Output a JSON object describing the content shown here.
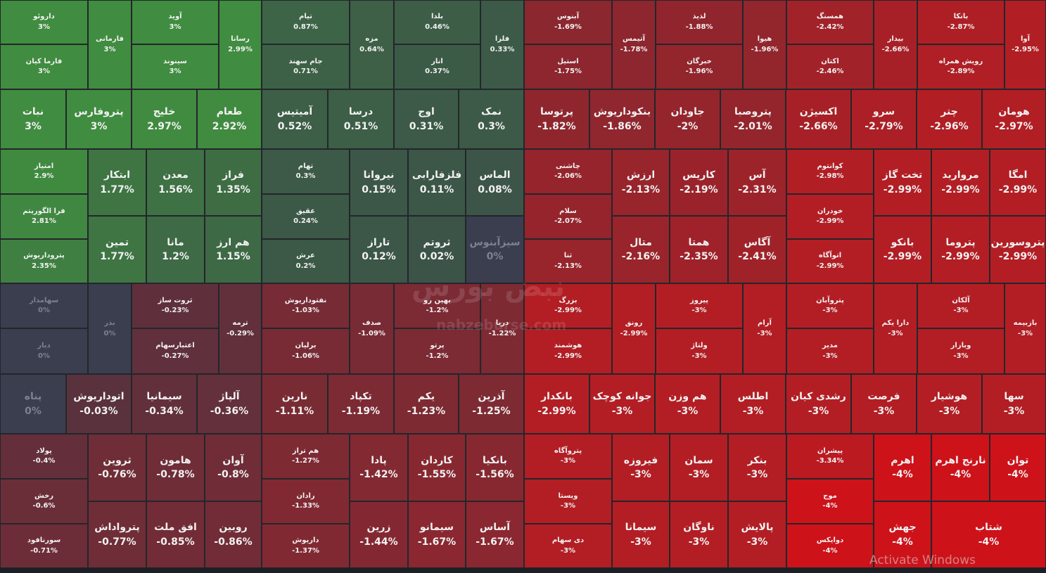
{
  "tiles": [
    {
      "name": "داروئو",
      "change": "3%"
    },
    {
      "name": "فارما کیان",
      "change": "3%"
    },
    {
      "name": "فارمانی",
      "change": "3%"
    },
    {
      "name": "آوید",
      "change": "3%"
    },
    {
      "name": "سینوند",
      "change": "3%"
    },
    {
      "name": "رسانا",
      "change": "2.99%"
    },
    {
      "name": "نبات",
      "change": "3%"
    },
    {
      "name": "پتروفارس",
      "change": "3%"
    },
    {
      "name": "خلیج",
      "change": "2.97%"
    },
    {
      "name": "طعام",
      "change": "2.92%"
    },
    {
      "name": "امتیاز",
      "change": "2.9%"
    },
    {
      "name": "فرا الگوریتم",
      "change": "2.81%"
    },
    {
      "name": "پتروداریوش",
      "change": "2.35%"
    },
    {
      "name": "ابتکار",
      "change": "1.77%"
    },
    {
      "name": "معدن",
      "change": "1.56%"
    },
    {
      "name": "فراز",
      "change": "1.35%"
    },
    {
      "name": "تمین",
      "change": "1.77%"
    },
    {
      "name": "مانا",
      "change": "1.2%"
    },
    {
      "name": "هم ارز",
      "change": "1.15%"
    },
    {
      "name": "تیام",
      "change": "0.87%"
    },
    {
      "name": "جام سهند",
      "change": "0.71%"
    },
    {
      "name": "مزه",
      "change": "0.64%"
    },
    {
      "name": "بلدا",
      "change": "0.46%"
    },
    {
      "name": "انار",
      "change": "0.37%"
    },
    {
      "name": "فلزا",
      "change": "0.33%"
    },
    {
      "name": "آمیتیس",
      "change": "0.52%"
    },
    {
      "name": "درسا",
      "change": "0.51%"
    },
    {
      "name": "اوج",
      "change": "0.31%"
    },
    {
      "name": "نمک",
      "change": "0.3%"
    },
    {
      "name": "تهام",
      "change": "0.3%"
    },
    {
      "name": "عقیق",
      "change": "0.24%"
    },
    {
      "name": "عرش",
      "change": "0.2%"
    },
    {
      "name": "نیروانا",
      "change": "0.15%"
    },
    {
      "name": "فلزفارابی",
      "change": "0.11%"
    },
    {
      "name": "الماس",
      "change": "0.08%"
    },
    {
      "name": "تاراز",
      "change": "0.12%"
    },
    {
      "name": "ثروتم",
      "change": "0.02%"
    },
    {
      "name": "سیزآبنوس",
      "change": "0%"
    },
    {
      "name": "سهامدار",
      "change": "0%"
    },
    {
      "name": "دیار",
      "change": "0%"
    },
    {
      "name": "بذر",
      "change": "0%"
    },
    {
      "name": "ثروت ساز",
      "change": "-0.23%"
    },
    {
      "name": "اعتبارسهام",
      "change": "-0.27%"
    },
    {
      "name": "ترمه",
      "change": "-0.29%"
    },
    {
      "name": "نفتوداریوش",
      "change": "-1.03%"
    },
    {
      "name": "برلیان",
      "change": "-1.06%"
    },
    {
      "name": "صدف",
      "change": "-1.09%"
    },
    {
      "name": "بهین رو",
      "change": "-1.2%"
    },
    {
      "name": "پرتو",
      "change": "-1.2%"
    },
    {
      "name": "دریا",
      "change": "-1.22%"
    },
    {
      "name": "پناه",
      "change": "0%"
    },
    {
      "name": "اتوداریوش",
      "change": "-0.03%"
    },
    {
      "name": "سیمانیا",
      "change": "-0.34%"
    },
    {
      "name": "آلپاژ",
      "change": "-0.36%"
    },
    {
      "name": "نارین",
      "change": "-1.11%"
    },
    {
      "name": "تکپاد",
      "change": "-1.19%"
    },
    {
      "name": "یکم",
      "change": "-1.23%"
    },
    {
      "name": "آذرین",
      "change": "-1.25%"
    },
    {
      "name": "پولاد",
      "change": "-0.4%"
    },
    {
      "name": "رخش",
      "change": "-0.6%"
    },
    {
      "name": "سورنافود",
      "change": "-0.71%"
    },
    {
      "name": "ثروین",
      "change": "-0.76%"
    },
    {
      "name": "هامون",
      "change": "-0.78%"
    },
    {
      "name": "آوان",
      "change": "-0.8%"
    },
    {
      "name": "پترواداش",
      "change": "-0.77%"
    },
    {
      "name": "افق ملت",
      "change": "-0.85%"
    },
    {
      "name": "روبین",
      "change": "-0.86%"
    },
    {
      "name": "هم تراز",
      "change": "-1.27%"
    },
    {
      "name": "رادان",
      "change": "-1.33%"
    },
    {
      "name": "داریوش",
      "change": "-1.37%"
    },
    {
      "name": "پادا",
      "change": "-1.42%"
    },
    {
      "name": "کاردان",
      "change": "-1.55%"
    },
    {
      "name": "بانکیا",
      "change": "-1.56%"
    },
    {
      "name": "زرین",
      "change": "-1.44%"
    },
    {
      "name": "سیمانو",
      "change": "-1.67%"
    },
    {
      "name": "آساس",
      "change": "-1.67%"
    },
    {
      "name": "آبنوس",
      "change": "-1.69%"
    },
    {
      "name": "استیل",
      "change": "-1.75%"
    },
    {
      "name": "آتیمس",
      "change": "-1.78%"
    },
    {
      "name": "لذیذ",
      "change": "-1.88%"
    },
    {
      "name": "خبرگان",
      "change": "-1.96%"
    },
    {
      "name": "هیوا",
      "change": "-1.96%"
    },
    {
      "name": "همسنگ",
      "change": "-2.42%"
    },
    {
      "name": "اکتان",
      "change": "-2.46%"
    },
    {
      "name": "بیدار",
      "change": "-2.66%"
    },
    {
      "name": "بانکا",
      "change": "-2.87%"
    },
    {
      "name": "رویش همراه",
      "change": "-2.89%"
    },
    {
      "name": "آوا",
      "change": "-2.95%"
    },
    {
      "name": "پرتوسا",
      "change": "-1.82%"
    },
    {
      "name": "بنکوداریوش",
      "change": "-1.86%"
    },
    {
      "name": "جاودان",
      "change": "-2%"
    },
    {
      "name": "پتروصبا",
      "change": "-2.01%"
    },
    {
      "name": "اکسیژن",
      "change": "-2.66%"
    },
    {
      "name": "سرو",
      "change": "-2.79%"
    },
    {
      "name": "چتر",
      "change": "-2.96%"
    },
    {
      "name": "هومان",
      "change": "-2.97%"
    },
    {
      "name": "چاشنی",
      "change": "-2.06%"
    },
    {
      "name": "سلام",
      "change": "-2.07%"
    },
    {
      "name": "ثنا",
      "change": "-2.13%"
    },
    {
      "name": "ارزش",
      "change": "-2.13%"
    },
    {
      "name": "کاریس",
      "change": "-2.19%"
    },
    {
      "name": "آس",
      "change": "-2.31%"
    },
    {
      "name": "متال",
      "change": "-2.16%"
    },
    {
      "name": "همتا",
      "change": "-2.35%"
    },
    {
      "name": "آگاس",
      "change": "-2.41%"
    },
    {
      "name": "کوانتوم",
      "change": "-2.98%"
    },
    {
      "name": "خودران",
      "change": "-2.99%"
    },
    {
      "name": "اتوآگاه",
      "change": "-2.99%"
    },
    {
      "name": "تخت گاز",
      "change": "-2.99%"
    },
    {
      "name": "مرواربد",
      "change": "-2.99%"
    },
    {
      "name": "امگا",
      "change": "-2.99%"
    },
    {
      "name": "بانکو",
      "change": "-2.99%"
    },
    {
      "name": "پتروما",
      "change": "-2.99%"
    },
    {
      "name": "پتروسورین",
      "change": "-2.99%"
    },
    {
      "name": "بزرگ",
      "change": "-2.99%"
    },
    {
      "name": "هوشمند",
      "change": "-2.99%"
    },
    {
      "name": "رونق",
      "change": "-2.99%"
    },
    {
      "name": "پیروز",
      "change": "-3%"
    },
    {
      "name": "ولتاژ",
      "change": "-3%"
    },
    {
      "name": "آرام",
      "change": "-3%"
    },
    {
      "name": "پتروآبان",
      "change": "-3%"
    },
    {
      "name": "مدیر",
      "change": "-3%"
    },
    {
      "name": "دارا یکم",
      "change": "-3%"
    },
    {
      "name": "آلکان",
      "change": "-3%"
    },
    {
      "name": "وبازار",
      "change": "-3%"
    },
    {
      "name": "بازبیمه",
      "change": "-3%"
    },
    {
      "name": "بانکدار",
      "change": "-2.99%"
    },
    {
      "name": "جوانه کوچک",
      "change": "-3%"
    },
    {
      "name": "هم وزن",
      "change": "-3%"
    },
    {
      "name": "اطلس",
      "change": "-3%"
    },
    {
      "name": "رشدی کیان",
      "change": "-3%"
    },
    {
      "name": "فرصت",
      "change": "-3%"
    },
    {
      "name": "هوشیار",
      "change": "-3%"
    },
    {
      "name": "سها",
      "change": "-3%"
    },
    {
      "name": "پتروآگاه",
      "change": "-3%"
    },
    {
      "name": "ویستا",
      "change": "-3%"
    },
    {
      "name": "دی سهام",
      "change": "-3%"
    },
    {
      "name": "فیروزه",
      "change": "-3%"
    },
    {
      "name": "سمان",
      "change": "-3%"
    },
    {
      "name": "بنکر",
      "change": "-3%"
    },
    {
      "name": "سیمانا",
      "change": "-3%"
    },
    {
      "name": "ناوگان",
      "change": "-3%"
    },
    {
      "name": "پالایش",
      "change": "-3%"
    },
    {
      "name": "پیشران",
      "change": "-3.34%"
    },
    {
      "name": "موج",
      "change": "-4%"
    },
    {
      "name": "دوایکس",
      "change": "-4%"
    },
    {
      "name": "اهرم",
      "change": "-4%"
    },
    {
      "name": "نارنج اهرم",
      "change": "-4%"
    },
    {
      "name": "توان",
      "change": "-4%"
    },
    {
      "name": "جهش",
      "change": "-4%"
    },
    {
      "name": "شتاب",
      "change": "-4%"
    }
  ],
  "watermark": {
    "logo": "نبض بورس",
    "url": "nabzeburse.com"
  },
  "system_notice": "Activate Windows"
}
